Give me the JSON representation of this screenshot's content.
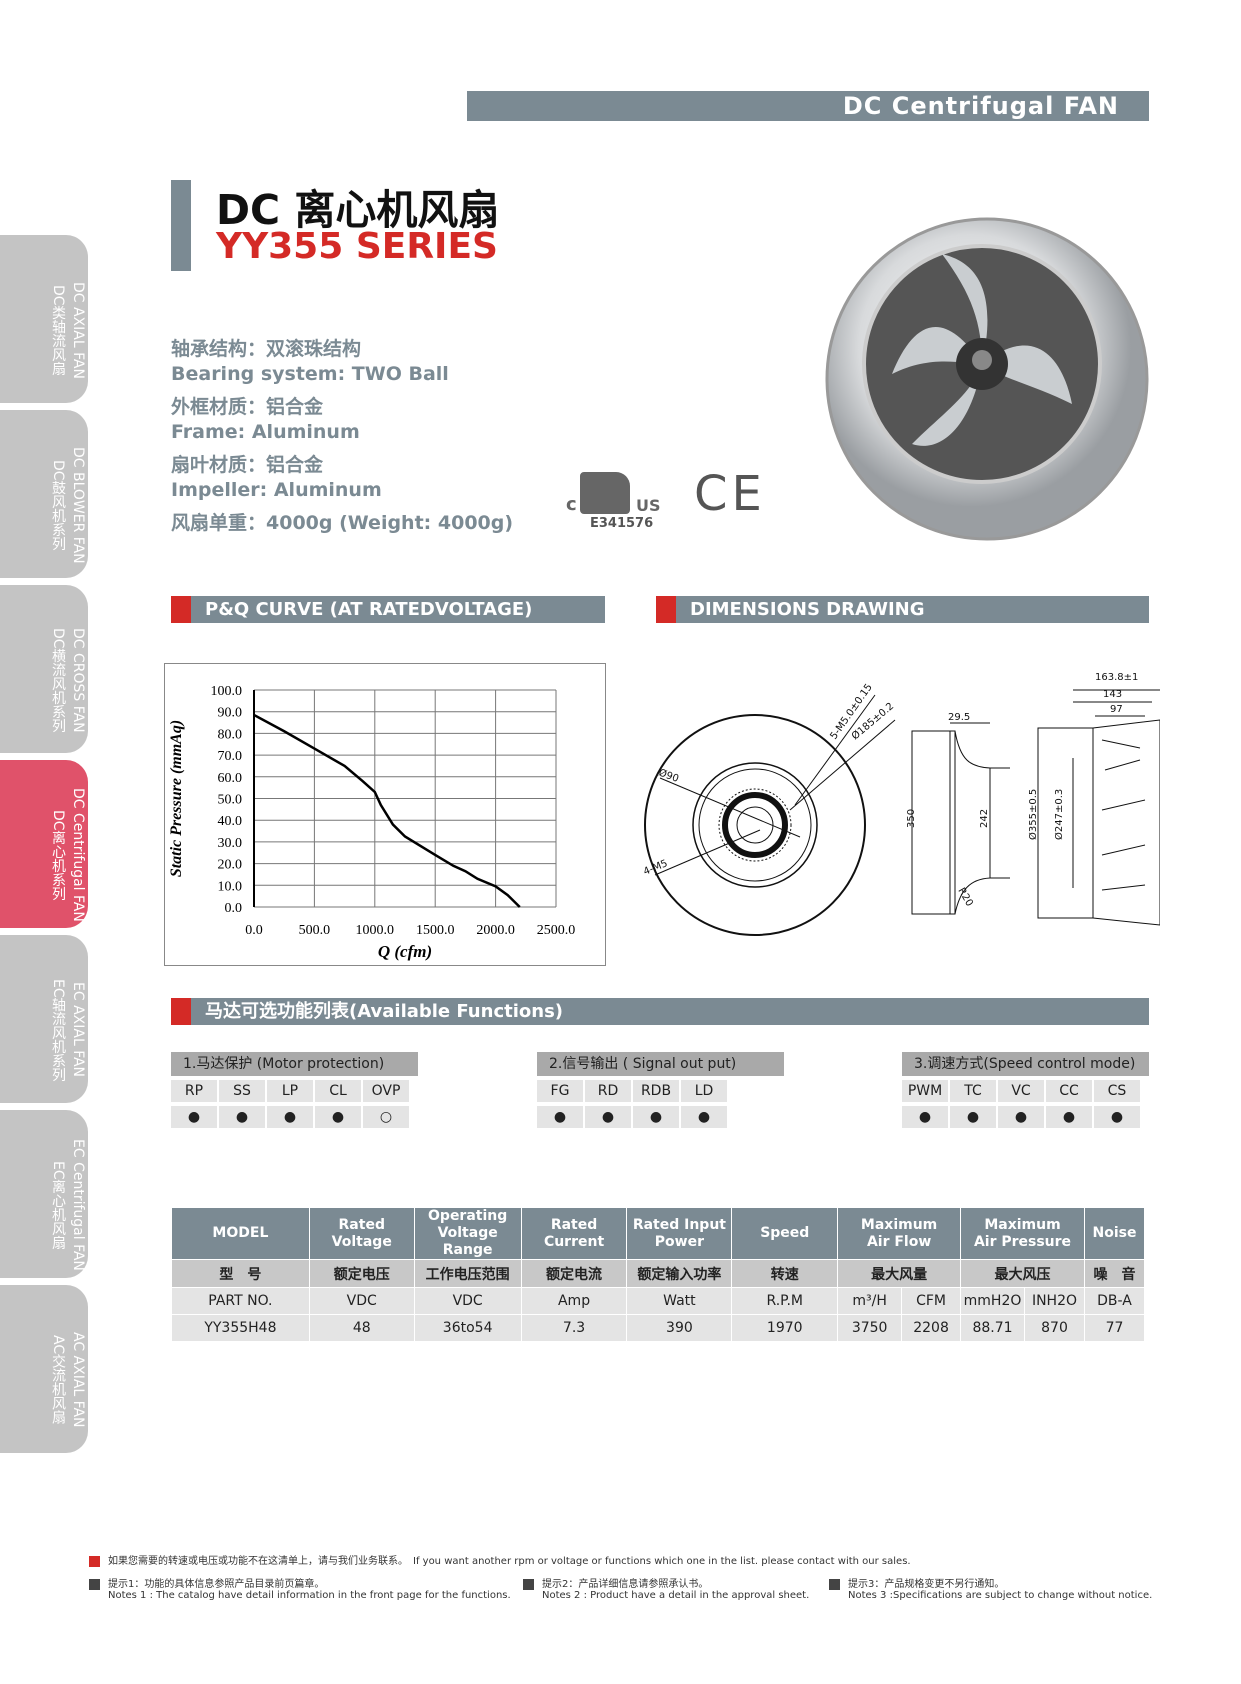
{
  "banner": "DC Centrifugal FAN",
  "title": "DC 离心机风扇",
  "series": "YY355 SERIES",
  "specs": [
    "轴承结构：双滚珠结构",
    "Bearing system:  TWO  Ball",
    "外框材质：铝合金",
    "Frame: Aluminum",
    "扇叶材质：铝合金",
    "Impeller: Aluminum",
    "风扇单重：4000g (Weight: 4000g)"
  ],
  "cert": {
    "ul_left": "c",
    "ul_right": "US",
    "ul_number": "E341576",
    "ce": "CE"
  },
  "side_tabs": [
    {
      "en": "DC AXIAL FAN",
      "cn": "DC类轴流风扇"
    },
    {
      "en": "DC BLOWER FAN",
      "cn": "DC鼓风机系列"
    },
    {
      "en": "DC CROSS FAN",
      "cn": "DC横流风机系列"
    },
    {
      "en": "DC Centrifugal FAN",
      "cn": "DC离心机系列",
      "active": true
    },
    {
      "en": "EC AXIAL FAN",
      "cn": "EC轴流风机系列"
    },
    {
      "en": "EC Centrifugal FAN",
      "cn": "EC离心机风扇"
    },
    {
      "en": "AC AXIAL FAN",
      "cn": "AC交流机风扇"
    }
  ],
  "sections": {
    "pq": "P&Q CURVE (AT RATEDVOLTAGE)",
    "dims": "DIMENSIONS DRAWING",
    "functions": "马达可选功能列表(Available Functions)"
  },
  "chart_data": {
    "type": "line",
    "xlabel": "Q (cfm)",
    "ylabel": "Static Pressure (mmAq)",
    "xlim": [
      0,
      2500
    ],
    "ylim": [
      0,
      100
    ],
    "grid": true,
    "xticks": [
      "0.0",
      "500.0",
      "1000.0",
      "1500.0",
      "2000.0",
      "2500.0"
    ],
    "yticks": [
      "0.0",
      "10.0",
      "20.0",
      "30.0",
      "40.0",
      "50.0",
      "60.0",
      "70.0",
      "80.0",
      "90.0",
      "100.0"
    ],
    "x": [
      0,
      250,
      500,
      750,
      900,
      1000,
      1050,
      1150,
      1250,
      1500,
      1650,
      1750,
      1850,
      2000,
      2100,
      2200
    ],
    "y": [
      88.5,
      81,
      73,
      65,
      58,
      53,
      47,
      38,
      32.5,
      24,
      19,
      16.5,
      13,
      9.5,
      5.5,
      0
    ]
  },
  "dimensions": {
    "labels": [
      "5-M5.0±0.15",
      "Ø185±0.2",
      "Ø90",
      "4-M5",
      "29.5",
      "350",
      "242",
      "R20",
      "163.8±1",
      "143",
      "97",
      "Ø355±0.5",
      "Ø247±0.3"
    ]
  },
  "functions": [
    {
      "title": "1.马达保护 (Motor protection)",
      "items": [
        "RP",
        "SS",
        "LP",
        "CL",
        "OVP"
      ],
      "marks": [
        "●",
        "●",
        "●",
        "●",
        "○"
      ]
    },
    {
      "title": "2.信号输出 ( Signal out put)",
      "items": [
        "FG",
        "RD",
        "RDB",
        "LD"
      ],
      "marks": [
        "●",
        "●",
        "●",
        "●"
      ]
    },
    {
      "title": "3.调速方式(Speed control mode)",
      "items": [
        "PWM",
        "TC",
        "VC",
        "CC",
        "CS"
      ],
      "marks": [
        "●",
        "●",
        "●",
        "●",
        "●"
      ]
    }
  ],
  "table": {
    "headers": [
      "MODEL",
      "Rated\nVoltage",
      "Operating\nVoltage Range",
      "Rated\nCurrent",
      "Rated Input\nPower",
      "Speed",
      "Maximum\nAir Flow",
      "Maximum\nAir Pressure",
      "Noise"
    ],
    "cn": [
      "型　号",
      "额定电压",
      "工作电压范围",
      "额定电流",
      "额定输入功率",
      "转速",
      "最大风量",
      "最大风压",
      "噪　音"
    ],
    "units": [
      "PART NO.",
      "VDC",
      "VDC",
      "Amp",
      "Watt",
      "R.P.M",
      "m³/H",
      "CFM",
      "mmH2O",
      "INH2O",
      "DB-A"
    ],
    "rows": [
      [
        "YY355H48",
        "48",
        "36to54",
        "7.3",
        "390",
        "1970",
        "3750",
        "2208",
        "88.71",
        "870",
        "77"
      ]
    ]
  },
  "footer": {
    "note0": "如果您需要的转速或电压或功能不在这清单上，请与我们业务联系。　If you want another rpm or voltage or functions which one in the list. please contact with our sales.",
    "notes": [
      {
        "cn": "提示1：功能的具体信息参照产品目录前页篇章。",
        "en": "Notes 1 : The catalog have detail information in the front page for the functions."
      },
      {
        "cn": "提示2：产品详细信息请参照承认书。",
        "en": "Notes 2 : Product have a detail in the approval sheet."
      },
      {
        "cn": "提示3：产品规格变更不另行通知。",
        "en": "Notes 3 :Specifications are subject to change without notice."
      }
    ]
  },
  "colors": {
    "accent": "#d42a26",
    "slate": "#7b8a93",
    "active_tab": "#e0526a",
    "tab": "#c4c4c4"
  }
}
